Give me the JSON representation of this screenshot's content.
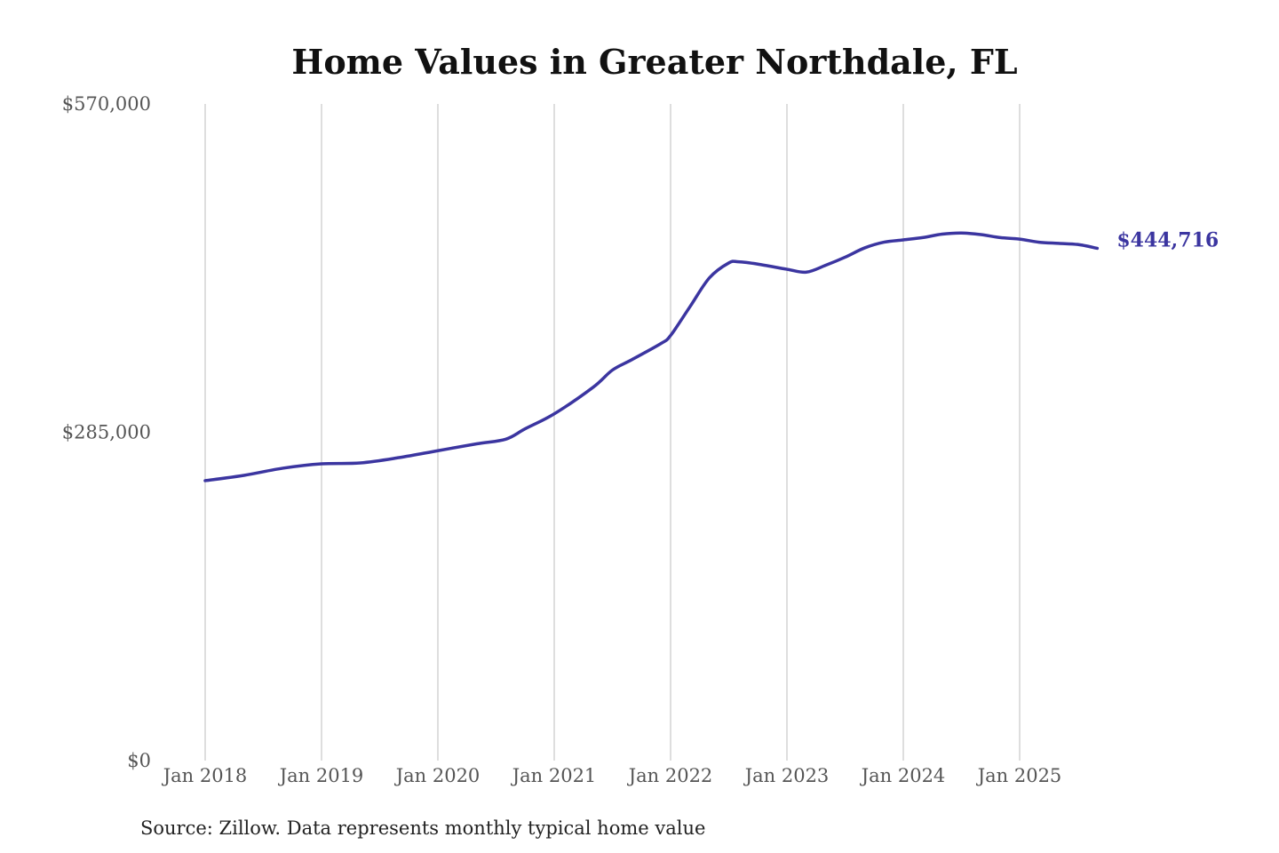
{
  "chart_data": {
    "type": "line",
    "title": "Home Values in Greater Northdale, FL",
    "source": "Source: Zillow. Data represents monthly typical home value",
    "xlabel": "",
    "ylabel": "",
    "ylim": [
      0,
      570000
    ],
    "y_ticks": [
      0,
      285000,
      570000
    ],
    "y_tick_labels": [
      "$0",
      "$285,000",
      "$570,000"
    ],
    "x_ticks": [
      "2018-01",
      "2019-01",
      "2020-01",
      "2021-01",
      "2022-01",
      "2023-01",
      "2024-01",
      "2025-01"
    ],
    "x_tick_labels": [
      "Jan 2018",
      "Jan 2019",
      "Jan 2020",
      "Jan 2021",
      "Jan 2022",
      "Jan 2023",
      "Jan 2024",
      "Jan 2025"
    ],
    "grid": "vertical",
    "line_color": "#3b35a0",
    "grid_color": "#c8c8c8",
    "end_label": "$444,716",
    "series": [
      {
        "x": [
          "2018-01",
          "2018-05",
          "2018-09",
          "2019-01",
          "2019-05",
          "2019-09",
          "2020-01",
          "2020-05",
          "2020-08",
          "2020-10",
          "2021-01",
          "2021-05",
          "2021-07",
          "2021-09",
          "2021-12",
          "2022-01",
          "2022-03",
          "2022-05",
          "2022-07",
          "2022-08",
          "2022-10",
          "2023-01",
          "2023-03",
          "2023-05",
          "2023-07",
          "2023-09",
          "2023-11",
          "2024-01",
          "2024-03",
          "2024-05",
          "2024-07",
          "2024-09",
          "2024-11",
          "2025-01",
          "2025-03",
          "2025-05",
          "2025-07",
          "2025-09"
        ],
        "values": [
          243000,
          247600,
          253800,
          257600,
          258400,
          263000,
          269000,
          275000,
          279000,
          288000,
          301000,
          324000,
          339000,
          348000,
          362000,
          369000,
          394000,
          419000,
          432000,
          433000,
          431000,
          426500,
          424000,
          430000,
          437000,
          445000,
          450000,
          452000,
          454000,
          457000,
          458000,
          456600,
          454000,
          452700,
          450000,
          449000,
          448000,
          444716
        ]
      }
    ]
  }
}
